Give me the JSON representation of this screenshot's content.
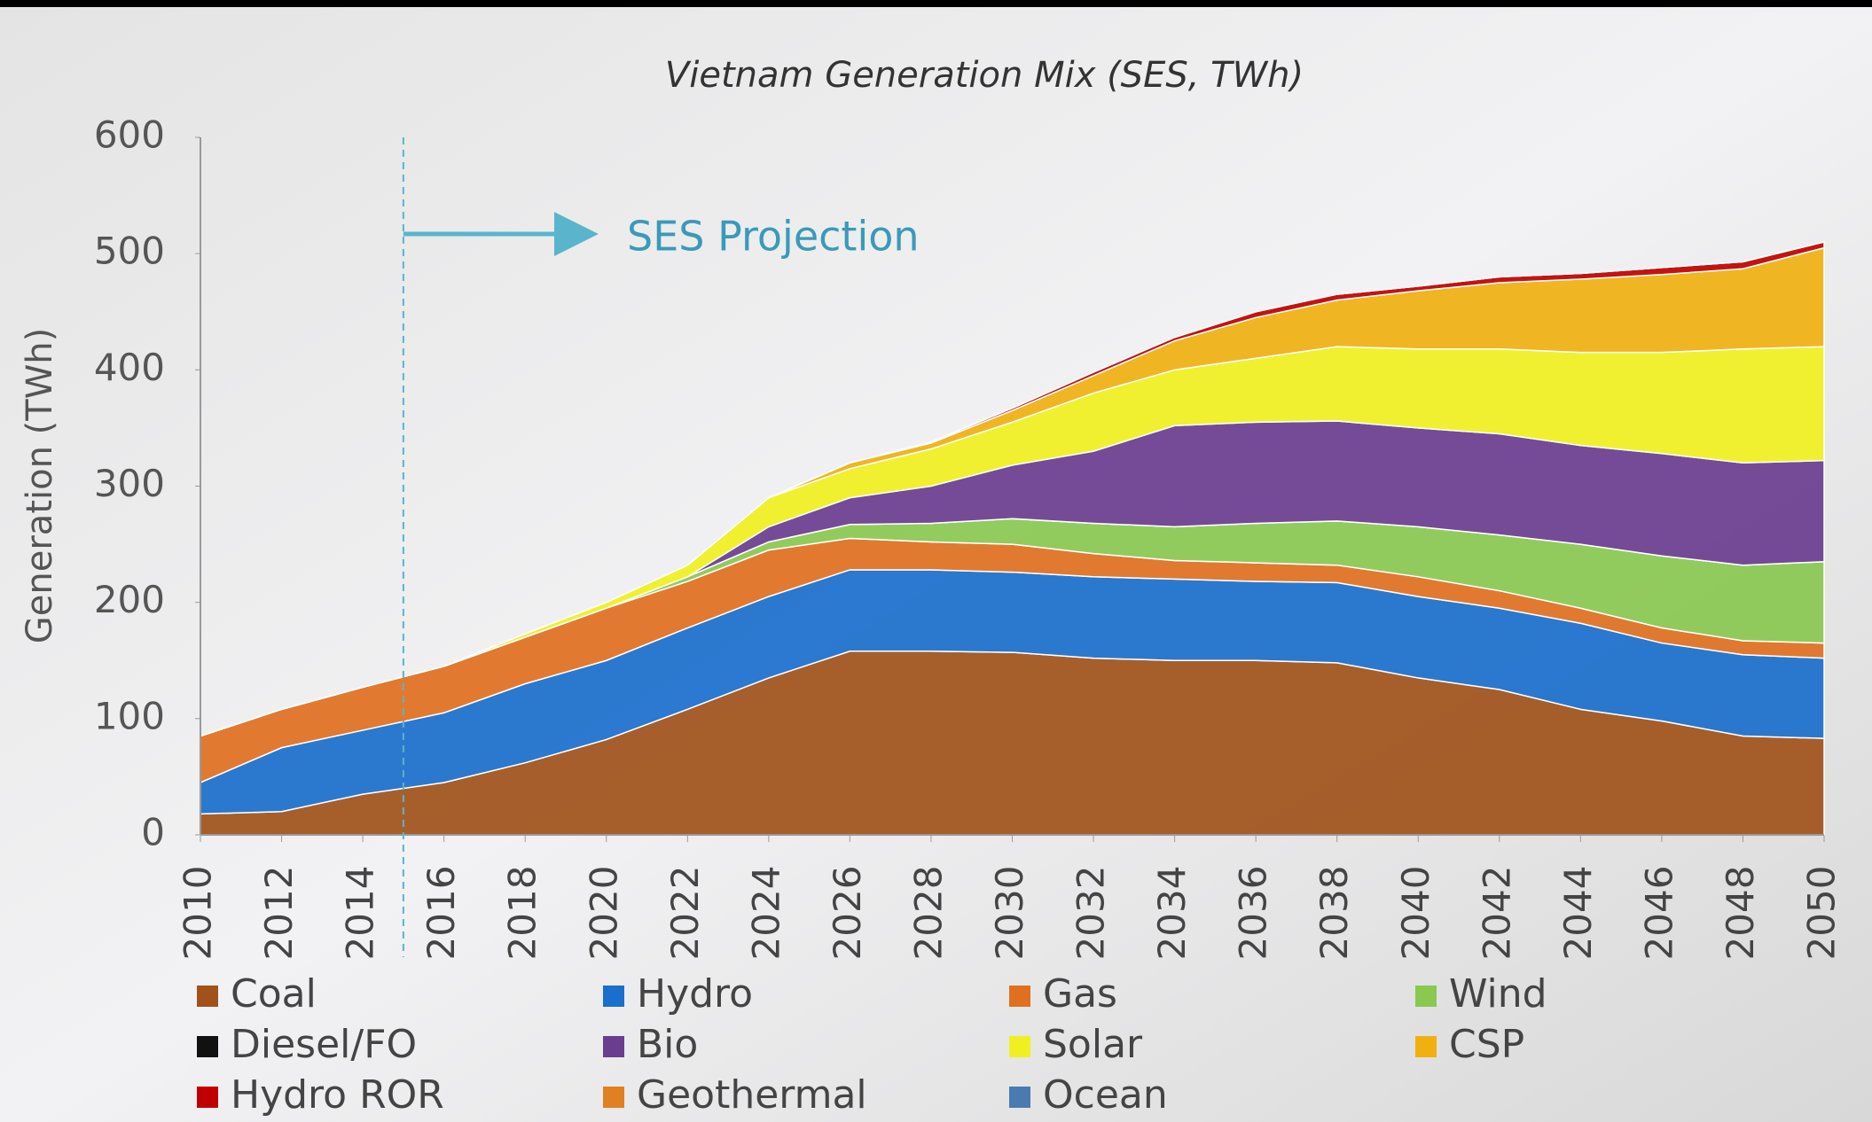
{
  "chart_data": {
    "type": "stacked_area",
    "title": "Vietnam Generation Mix (SES, TWh)",
    "ylabel": "Generation (TWh)",
    "annotation": "SES Projection",
    "projection_start": 2015,
    "x": [
      2010,
      2012,
      2014,
      2016,
      2018,
      2020,
      2022,
      2024,
      2026,
      2028,
      2030,
      2032,
      2034,
      2036,
      2038,
      2040,
      2042,
      2044,
      2046,
      2048,
      2050
    ],
    "xlim": [
      2010,
      2050
    ],
    "xticks": [
      2010,
      2012,
      2014,
      2016,
      2018,
      2020,
      2022,
      2024,
      2026,
      2028,
      2030,
      2032,
      2034,
      2036,
      2038,
      2040,
      2042,
      2044,
      2046,
      2048,
      2050
    ],
    "ylim": [
      0,
      600
    ],
    "yticks": [
      0,
      100,
      200,
      300,
      400,
      500,
      600
    ],
    "series": [
      {
        "name": "Coal",
        "color": "#a0521a",
        "values": [
          18,
          20,
          35,
          45,
          62,
          82,
          108,
          135,
          158,
          158,
          157,
          152,
          150,
          150,
          148,
          135,
          125,
          108,
          98,
          85,
          83
        ]
      },
      {
        "name": "Hydro",
        "color": "#1a6fcc",
        "values": [
          27,
          55,
          55,
          60,
          68,
          68,
          70,
          70,
          70,
          70,
          69,
          70,
          70,
          68,
          69,
          70,
          70,
          74,
          67,
          70,
          69
        ]
      },
      {
        "name": "Gas",
        "color": "#e07020",
        "values": [
          40,
          33,
          37,
          40,
          40,
          45,
          40,
          40,
          27,
          24,
          24,
          20,
          16,
          16,
          15,
          17,
          15,
          13,
          13,
          12,
          13
        ]
      },
      {
        "name": "Wind",
        "color": "#8ac850",
        "values": [
          0,
          0,
          0,
          0,
          0,
          0,
          4,
          7,
          12,
          16,
          22,
          26,
          29,
          34,
          38,
          43,
          48,
          55,
          62,
          65,
          70
        ]
      },
      {
        "name": "Diesel/FO",
        "color": "#111111",
        "values": [
          0,
          0,
          0,
          0,
          0,
          0,
          0,
          0,
          0,
          0,
          0,
          0,
          0,
          0,
          0,
          0,
          0,
          0,
          0,
          0,
          0
        ]
      },
      {
        "name": "Bio",
        "color": "#6a3d8f",
        "values": [
          0,
          0,
          0,
          0,
          0,
          0,
          0,
          13,
          23,
          32,
          46,
          62,
          87,
          87,
          86,
          85,
          87,
          85,
          88,
          88,
          87
        ]
      },
      {
        "name": "Solar",
        "color": "#f0f020",
        "values": [
          0,
          0,
          0,
          0,
          3,
          5,
          10,
          25,
          25,
          32,
          37,
          50,
          48,
          55,
          64,
          68,
          73,
          80,
          87,
          98,
          98
        ]
      },
      {
        "name": "CSP",
        "color": "#f0b010",
        "values": [
          0,
          0,
          0,
          0,
          0,
          0,
          0,
          0,
          5,
          5,
          10,
          15,
          25,
          35,
          40,
          50,
          57,
          63,
          67,
          69,
          85
        ]
      },
      {
        "name": "Hydro ROR",
        "color": "#c00000",
        "values": [
          0,
          0,
          0,
          0,
          0,
          0,
          0,
          0,
          0,
          1,
          2,
          3,
          3,
          5,
          5,
          4,
          5,
          5,
          6,
          6,
          5
        ]
      },
      {
        "name": "Geothermal",
        "color": "#e08020",
        "values": [
          0,
          0,
          0,
          0,
          0,
          0,
          0,
          0,
          0,
          0,
          0,
          0,
          0,
          0,
          0,
          0,
          0,
          0,
          0,
          0,
          0
        ]
      },
      {
        "name": "Ocean",
        "color": "#4a7ab0",
        "values": [
          0,
          0,
          0,
          0,
          0,
          0,
          0,
          0,
          0,
          0,
          0,
          0,
          0,
          0,
          0,
          0,
          0,
          0,
          0,
          0,
          0
        ]
      }
    ]
  }
}
